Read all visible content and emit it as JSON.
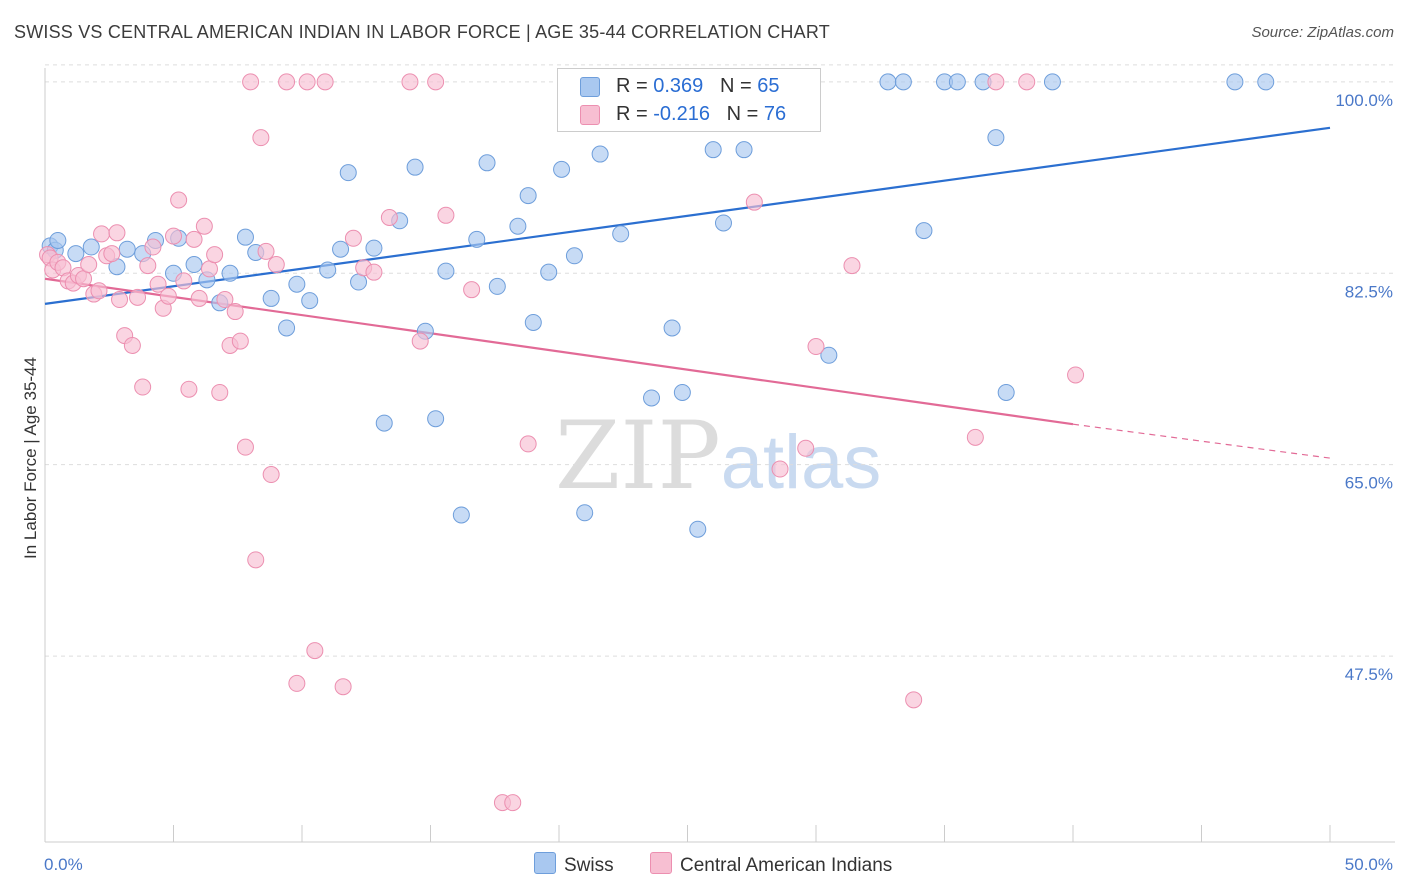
{
  "title": "SWISS VS CENTRAL AMERICAN INDIAN IN LABOR FORCE | AGE 35-44 CORRELATION CHART",
  "source": "Source: ZipAtlas.com",
  "watermark": {
    "zip": "ZIP",
    "atlas": "atlas"
  },
  "legend": {
    "rows": [
      {
        "r_label": "R = ",
        "r_value": "0.369",
        "n_label": "N = ",
        "n_value": "65",
        "color": "#a9c8f0"
      },
      {
        "r_label": "R = ",
        "r_value": "-0.216",
        "n_label": "N = ",
        "n_value": "76",
        "color": "#f7bfd2"
      }
    ]
  },
  "chart_data": {
    "type": "scatter",
    "title": "SWISS VS CENTRAL AMERICAN INDIAN IN LABOR FORCE | AGE 35-44 CORRELATION CHART",
    "xlabel": "",
    "ylabel": "In Labor Force | Age 35-44",
    "xlim": [
      0,
      50
    ],
    "ylim": [
      30.5,
      102
    ],
    "x_tick_labels": [
      "0.0%",
      "50.0%"
    ],
    "y_ticks": [
      47.5,
      65.0,
      82.5,
      100.0
    ],
    "y_tick_labels": [
      "47.5%",
      "65.0%",
      "82.5%",
      "100.0%"
    ],
    "grid": true,
    "series": [
      {
        "name": "Swiss",
        "color": "#a9c8f0",
        "edge": "#6e9edb",
        "line_color": "#2b6fd0",
        "trend": {
          "x": [
            0,
            50
          ],
          "y": [
            79.7,
            95.8
          ]
        },
        "points": [
          [
            0.2,
            85.0
          ],
          [
            0.4,
            84.6
          ],
          [
            0.5,
            85.5
          ],
          [
            1.2,
            84.3
          ],
          [
            1.8,
            84.9
          ],
          [
            2.8,
            83.1
          ],
          [
            3.2,
            84.7
          ],
          [
            3.8,
            84.3
          ],
          [
            4.3,
            85.5
          ],
          [
            5.0,
            82.5
          ],
          [
            5.2,
            85.7
          ],
          [
            5.8,
            83.3
          ],
          [
            6.3,
            81.9
          ],
          [
            6.8,
            79.8
          ],
          [
            7.2,
            82.5
          ],
          [
            7.8,
            85.8
          ],
          [
            8.2,
            84.4
          ],
          [
            8.8,
            80.2
          ],
          [
            9.4,
            77.5
          ],
          [
            9.8,
            81.5
          ],
          [
            10.3,
            80.0
          ],
          [
            11.0,
            82.8
          ],
          [
            11.5,
            84.7
          ],
          [
            11.8,
            91.7
          ],
          [
            12.2,
            81.7
          ],
          [
            12.8,
            84.8
          ],
          [
            13.2,
            68.8
          ],
          [
            13.8,
            87.3
          ],
          [
            14.4,
            92.2
          ],
          [
            14.8,
            77.2
          ],
          [
            15.2,
            69.2
          ],
          [
            15.6,
            82.7
          ],
          [
            16.2,
            60.4
          ],
          [
            16.8,
            85.6
          ],
          [
            17.2,
            92.6
          ],
          [
            17.6,
            81.3
          ],
          [
            18.4,
            86.8
          ],
          [
            18.8,
            89.6
          ],
          [
            19.0,
            78.0
          ],
          [
            19.6,
            82.6
          ],
          [
            20.1,
            92.0
          ],
          [
            20.6,
            84.1
          ],
          [
            21.0,
            60.6
          ],
          [
            21.6,
            93.4
          ],
          [
            22.4,
            86.1
          ],
          [
            23.0,
            100.0
          ],
          [
            23.6,
            71.1
          ],
          [
            24.4,
            77.5
          ],
          [
            24.8,
            71.6
          ],
          [
            25.4,
            59.1
          ],
          [
            26.0,
            93.8
          ],
          [
            26.4,
            87.1
          ],
          [
            27.2,
            93.8
          ],
          [
            30.5,
            75.0
          ],
          [
            32.8,
            100.0
          ],
          [
            33.4,
            100.0
          ],
          [
            34.2,
            86.4
          ],
          [
            35.0,
            100.0
          ],
          [
            35.5,
            100.0
          ],
          [
            36.5,
            100.0
          ],
          [
            37.0,
            94.9
          ],
          [
            37.4,
            71.6
          ],
          [
            39.2,
            100.0
          ],
          [
            46.3,
            100.0
          ],
          [
            47.5,
            100.0
          ]
        ]
      },
      {
        "name": "Central American Indians",
        "color": "#f7bfd2",
        "edge": "#ec8fb0",
        "line_color": "#e26a96",
        "trend": {
          "x": [
            0,
            40
          ],
          "y": [
            82.0,
            68.7
          ]
        },
        "trend_dashed": {
          "x": [
            40,
            50
          ],
          "y": [
            68.7,
            65.6
          ]
        },
        "points": [
          [
            0.1,
            84.2
          ],
          [
            0.2,
            83.9
          ],
          [
            0.3,
            82.8
          ],
          [
            0.5,
            83.5
          ],
          [
            0.7,
            83.0
          ],
          [
            0.9,
            81.8
          ],
          [
            1.1,
            81.6
          ],
          [
            1.3,
            82.3
          ],
          [
            1.5,
            82.0
          ],
          [
            1.7,
            83.3
          ],
          [
            1.9,
            80.6
          ],
          [
            2.1,
            80.9
          ],
          [
            2.2,
            86.1
          ],
          [
            2.4,
            84.1
          ],
          [
            2.6,
            84.3
          ],
          [
            2.8,
            86.2
          ],
          [
            2.9,
            80.1
          ],
          [
            3.1,
            76.8
          ],
          [
            3.4,
            75.9
          ],
          [
            3.6,
            80.3
          ],
          [
            3.8,
            72.1
          ],
          [
            4.0,
            83.2
          ],
          [
            4.2,
            84.9
          ],
          [
            4.4,
            81.5
          ],
          [
            4.6,
            79.3
          ],
          [
            4.8,
            80.4
          ],
          [
            5.0,
            85.9
          ],
          [
            5.2,
            89.2
          ],
          [
            5.4,
            81.8
          ],
          [
            5.6,
            71.9
          ],
          [
            5.8,
            85.6
          ],
          [
            6.0,
            80.2
          ],
          [
            6.2,
            86.8
          ],
          [
            6.4,
            82.9
          ],
          [
            6.6,
            84.2
          ],
          [
            6.8,
            71.6
          ],
          [
            7.0,
            80.1
          ],
          [
            7.2,
            75.9
          ],
          [
            7.4,
            79.0
          ],
          [
            7.6,
            76.3
          ],
          [
            7.8,
            66.6
          ],
          [
            8.0,
            100.0
          ],
          [
            8.2,
            56.3
          ],
          [
            8.4,
            94.9
          ],
          [
            8.6,
            84.5
          ],
          [
            8.8,
            64.1
          ],
          [
            9.0,
            83.3
          ],
          [
            9.4,
            100.0
          ],
          [
            9.8,
            45.0
          ],
          [
            10.2,
            100.0
          ],
          [
            10.5,
            48.0
          ],
          [
            10.9,
            100.0
          ],
          [
            11.6,
            44.7
          ],
          [
            12.0,
            85.7
          ],
          [
            12.4,
            83.0
          ],
          [
            12.8,
            82.6
          ],
          [
            13.4,
            87.6
          ],
          [
            14.2,
            100.0
          ],
          [
            14.6,
            76.3
          ],
          [
            15.2,
            100.0
          ],
          [
            15.6,
            87.8
          ],
          [
            16.6,
            81.0
          ],
          [
            17.8,
            34.1
          ],
          [
            18.2,
            34.1
          ],
          [
            18.8,
            66.9
          ],
          [
            24.0,
            100.0
          ],
          [
            27.6,
            89.0
          ],
          [
            28.6,
            64.6
          ],
          [
            29.6,
            66.5
          ],
          [
            30.0,
            75.8
          ],
          [
            31.4,
            83.2
          ],
          [
            33.8,
            43.5
          ],
          [
            36.2,
            67.5
          ],
          [
            37.0,
            100.0
          ],
          [
            38.2,
            100.0
          ],
          [
            40.1,
            73.2
          ]
        ]
      }
    ]
  }
}
